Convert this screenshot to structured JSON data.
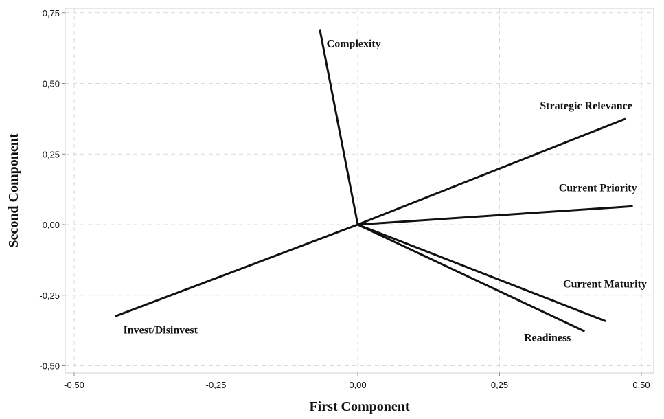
{
  "chart_data": {
    "type": "biplot",
    "xlabel": "First Component",
    "ylabel": "Second Component",
    "xlim": [
      -0.52,
      0.52
    ],
    "ylim": [
      -0.51,
      0.76
    ],
    "x_ticks": [
      -0.5,
      -0.25,
      0.0,
      0.25,
      0.5
    ],
    "y_ticks": [
      -0.5,
      -0.25,
      0.0,
      0.25,
      0.5,
      0.75
    ],
    "x_tick_labels": [
      "-0,50",
      "-0,25",
      "0,00",
      "0,25",
      "0,50"
    ],
    "y_tick_labels": [
      "-0,50",
      "-0,25",
      "0,00",
      "0,25",
      "0,50",
      "0,75"
    ],
    "grid": true,
    "legend": "none",
    "origin": [
      0.0,
      0.0
    ],
    "vectors": [
      {
        "label": "Complexity",
        "x": -0.067,
        "y": 0.692
      },
      {
        "label": "Strategic Relevance",
        "x": 0.472,
        "y": 0.375
      },
      {
        "label": "Current Priority",
        "x": 0.485,
        "y": 0.065
      },
      {
        "label": "Current Maturity",
        "x": 0.437,
        "y": -0.342
      },
      {
        "label": "Readiness",
        "x": 0.4,
        "y": -0.378
      },
      {
        "label": "Invest/Disinvest",
        "x": -0.428,
        "y": -0.325
      }
    ],
    "line_color": "#111111",
    "grid_color": "#d9d9d9",
    "frame_color": "#cfcfcf"
  }
}
